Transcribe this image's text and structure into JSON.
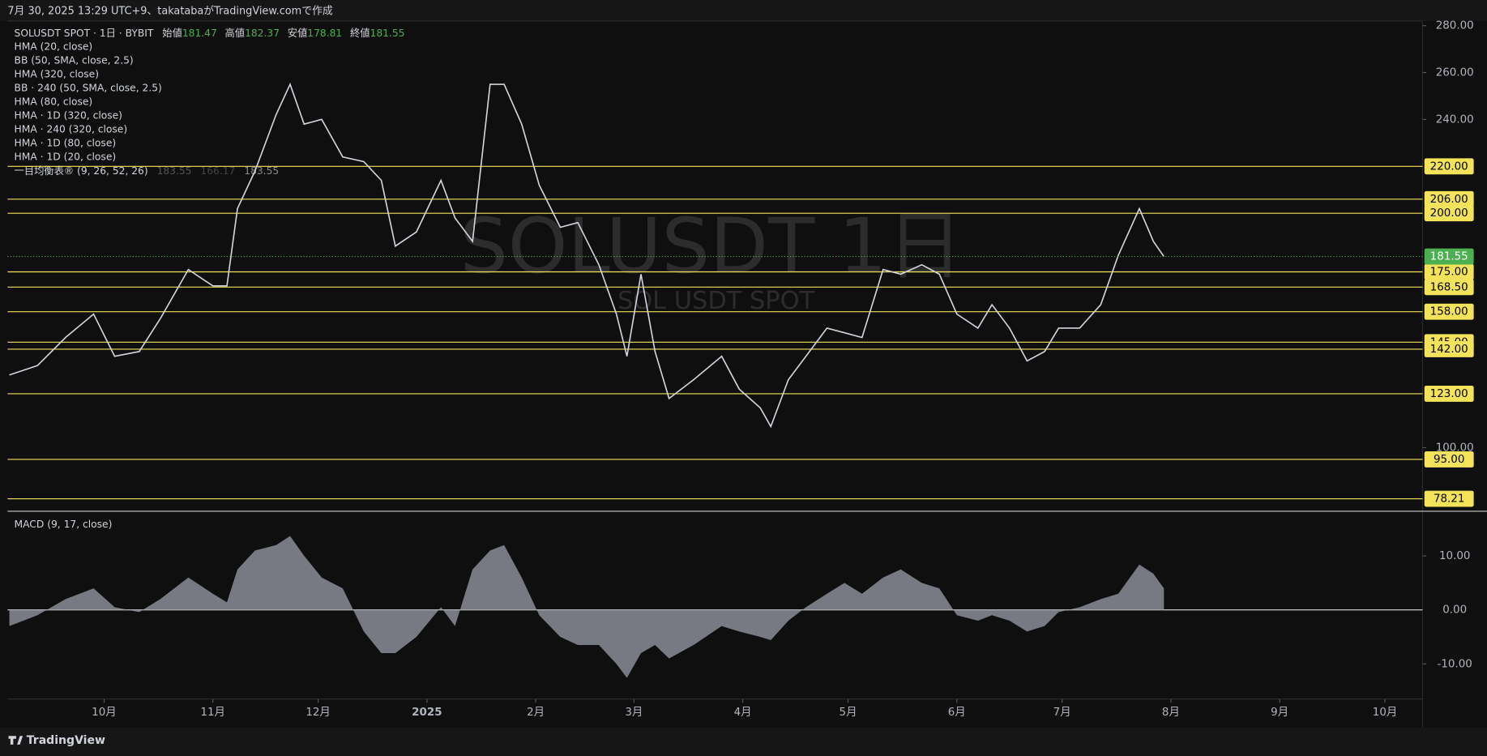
{
  "header": {
    "caption": "7月 30, 2025 13:29 UTC+9、takatabaがTradingView.comで作成"
  },
  "legend": {
    "ohlc": [
      {
        "label": "始値",
        "value": 181.47
      },
      {
        "label": "高値",
        "value": 182.37
      },
      {
        "label": "安値",
        "value": 178.81
      },
      {
        "label": "終値",
        "value": 181.55
      }
    ],
    "indicators": [
      "HMA (20, close)",
      "BB (50, SMA, close, 2.5)",
      "HMA (320, close)",
      "BB · 240 (50, SMA, close, 2.5)",
      "HMA (80, close)",
      "HMA · 1D (320, close)",
      "HMA · 240 (320, close)",
      "HMA · 1D (80, close)",
      "HMA · 1D (20, close)"
    ],
    "ichimoku": {
      "name": "一目均衡表® (9, 26, 52, 26)",
      "values": [
        183.55,
        166.17,
        183.55
      ]
    }
  },
  "watermark": {
    "title": "SOLUSDT 1日",
    "subtitle": "SOL USDT SPOT"
  },
  "chart_data": [
    {
      "type": "line",
      "series": [
        {
          "name": "SOLUSDT SPOT · 1日 · BYBIT",
          "color": "#d1d4dc",
          "values": [
            131,
            135,
            147,
            157,
            139,
            141,
            155,
            176,
            169,
            169,
            202,
            218,
            242,
            255,
            238,
            240,
            224,
            222,
            214,
            186,
            192,
            214,
            198,
            188,
            255,
            255,
            238,
            212,
            194,
            196,
            178,
            157,
            139,
            174,
            141,
            121,
            129,
            139,
            125,
            117,
            109,
            129,
            139,
            151,
            149,
            147,
            176,
            174,
            178,
            174,
            157,
            151,
            161,
            151,
            137,
            141,
            151,
            151,
            161,
            182,
            202,
            188,
            181.55
          ]
        }
      ],
      "x": [
        0,
        8,
        16,
        24,
        30,
        37,
        43,
        51,
        58,
        62,
        65,
        70,
        76,
        80,
        84,
        89,
        95,
        101,
        106,
        110,
        116,
        123,
        127,
        132,
        137,
        141,
        146,
        151,
        157,
        162,
        168,
        173,
        176,
        180,
        184,
        188,
        195,
        203,
        208,
        214,
        217,
        222,
        227,
        233,
        238,
        243,
        249,
        254,
        260,
        265,
        270,
        276,
        280,
        285,
        290,
        295,
        299,
        305,
        311,
        316,
        322,
        326,
        329
      ],
      "xlim": [
        -0.5,
        402.7
      ],
      "xticks": [
        {
          "value": 27,
          "label": "10月"
        },
        {
          "value": 58,
          "label": "11月"
        },
        {
          "value": 88,
          "label": "12月"
        },
        {
          "value": 119,
          "label": "2025"
        },
        {
          "value": 150,
          "label": "2月"
        },
        {
          "value": 178,
          "label": "3月"
        },
        {
          "value": 209,
          "label": "4月"
        },
        {
          "value": 239,
          "label": "5月"
        },
        {
          "value": 270,
          "label": "6月"
        },
        {
          "value": 300,
          "label": "7月"
        },
        {
          "value": 331,
          "label": "8月"
        },
        {
          "value": 362,
          "label": "9月"
        },
        {
          "value": 392,
          "label": "10月"
        }
      ],
      "ylim": [
        73.3,
        282
      ],
      "yticks": [
        {
          "value": 280,
          "label": "280.00"
        },
        {
          "value": 260,
          "label": "260.00"
        },
        {
          "value": 240,
          "label": "240.00"
        },
        {
          "value": 100,
          "label": "100.00"
        }
      ],
      "levels": [
        {
          "value": 220,
          "label": "220.00"
        },
        {
          "value": 206,
          "label": "206.00"
        },
        {
          "value": 200,
          "label": "200.00"
        },
        {
          "value": 175,
          "label": "175.00"
        },
        {
          "value": 168.5,
          "label": "168.50"
        },
        {
          "value": 158,
          "label": "158.00"
        },
        {
          "value": 145,
          "label": "145.00"
        },
        {
          "value": 142,
          "label": "142.00"
        },
        {
          "value": 123,
          "label": "123.00"
        },
        {
          "value": 95,
          "label": "95.00"
        },
        78.21
      ],
      "level_color": "#f2e35a",
      "last_price": 181.55,
      "last_price_color": "#4caf50"
    },
    {
      "type": "area",
      "title": "MACD (9, 17, close)",
      "color": "#8a8d96",
      "x": [
        0,
        8,
        16,
        24,
        30,
        37,
        43,
        51,
        58,
        62,
        65,
        70,
        76,
        80,
        84,
        89,
        95,
        101,
        106,
        110,
        116,
        123,
        127,
        132,
        137,
        141,
        146,
        151,
        157,
        162,
        168,
        173,
        176,
        180,
        184,
        188,
        195,
        203,
        208,
        214,
        217,
        222,
        227,
        233,
        238,
        243,
        249,
        254,
        260,
        265,
        270,
        276,
        280,
        285,
        290,
        295,
        299,
        305,
        311,
        316,
        322,
        326,
        329
      ],
      "values": [
        -3,
        -1,
        2,
        4,
        0.5,
        -0.4,
        2,
        6,
        3,
        1.4,
        7.5,
        11,
        12,
        13.7,
        10,
        6,
        4,
        -4,
        -8,
        -8,
        -5,
        0.5,
        -3,
        7.5,
        11,
        12,
        6,
        -1,
        -5,
        -6.5,
        -6.5,
        -10,
        -12.6,
        -8,
        -6.5,
        -9,
        -6.5,
        -3,
        -4,
        -5,
        -5.6,
        -2,
        0.5,
        3,
        5,
        3,
        6,
        7.5,
        5,
        4,
        -1,
        -2,
        -1,
        -2,
        -4,
        -3,
        -0.4,
        0.5,
        2,
        3,
        8.4,
        6.7,
        4
      ],
      "xlim": [
        -0.5,
        402.7
      ],
      "ylim": [
        -16.5,
        18.1
      ],
      "yticks": [
        {
          "value": 10,
          "label": "10.00"
        },
        {
          "value": 0,
          "label": "0.00"
        },
        {
          "value": -10,
          "label": "-10.00"
        }
      ],
      "zero_line": true
    }
  ],
  "footer": {
    "brand": "TradingView"
  }
}
